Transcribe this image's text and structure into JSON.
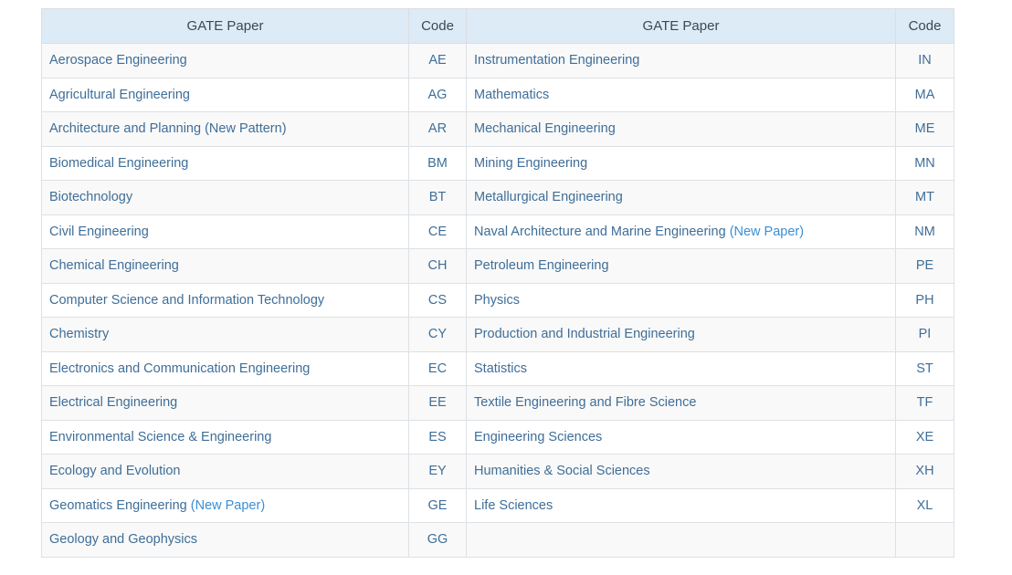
{
  "table": {
    "headers": [
      "GATE Paper",
      "Code",
      "GATE Paper",
      "Code"
    ],
    "rows": [
      {
        "left_paper": "Aerospace Engineering",
        "left_note": "",
        "left_code": "AE",
        "right_paper": "Instrumentation Engineering",
        "right_note": "",
        "right_code": "IN"
      },
      {
        "left_paper": "Agricultural Engineering",
        "left_note": "",
        "left_code": "AG",
        "right_paper": "Mathematics",
        "right_note": "",
        "right_code": "MA"
      },
      {
        "left_paper": "Architecture and Planning (New Pattern)",
        "left_note": "",
        "left_code": "AR",
        "right_paper": "Mechanical Engineering",
        "right_note": "",
        "right_code": "ME"
      },
      {
        "left_paper": "Biomedical Engineering",
        "left_note": "",
        "left_code": "BM",
        "right_paper": "Mining Engineering",
        "right_note": "",
        "right_code": "MN"
      },
      {
        "left_paper": "Biotechnology",
        "left_note": "",
        "left_code": "BT",
        "right_paper": "Metallurgical Engineering",
        "right_note": "",
        "right_code": "MT"
      },
      {
        "left_paper": "Civil Engineering",
        "left_note": "",
        "left_code": "CE",
        "right_paper": "Naval Architecture and Marine Engineering",
        "right_note": "(New Paper)",
        "right_code": "NM"
      },
      {
        "left_paper": "Chemical Engineering",
        "left_note": "",
        "left_code": "CH",
        "right_paper": "Petroleum Engineering",
        "right_note": "",
        "right_code": "PE"
      },
      {
        "left_paper": "Computer Science and Information Technology",
        "left_note": "",
        "left_code": "CS",
        "right_paper": "Physics",
        "right_note": "",
        "right_code": "PH"
      },
      {
        "left_paper": "Chemistry",
        "left_note": "",
        "left_code": "CY",
        "right_paper": "Production and Industrial Engineering",
        "right_note": "",
        "right_code": "PI"
      },
      {
        "left_paper": "Electronics and Communication Engineering",
        "left_note": "",
        "left_code": "EC",
        "right_paper": "Statistics",
        "right_note": "",
        "right_code": "ST"
      },
      {
        "left_paper": "Electrical Engineering",
        "left_note": "",
        "left_code": "EE",
        "right_paper": "Textile Engineering and Fibre Science",
        "right_note": "",
        "right_code": "TF"
      },
      {
        "left_paper": "Environmental Science & Engineering",
        "left_note": "",
        "left_code": "ES",
        "right_paper": "Engineering Sciences",
        "right_note": "",
        "right_code": "XE"
      },
      {
        "left_paper": "Ecology and Evolution",
        "left_note": "",
        "left_code": "EY",
        "right_paper": "Humanities & Social Sciences",
        "right_note": "",
        "right_code": "XH"
      },
      {
        "left_paper": "Geomatics Engineering",
        "left_note": "(New Paper)",
        "left_code": "GE",
        "right_paper": "Life Sciences",
        "right_note": "",
        "right_code": "XL"
      },
      {
        "left_paper": "Geology and Geophysics",
        "left_note": "",
        "left_code": "GG",
        "right_paper": "",
        "right_note": "",
        "right_code": ""
      }
    ]
  },
  "colors": {
    "header_bg": "#dcebf6",
    "link_text": "#3f6e98",
    "note_text": "#3a8fd6",
    "row_alt_bg": "#f9f9f9"
  }
}
